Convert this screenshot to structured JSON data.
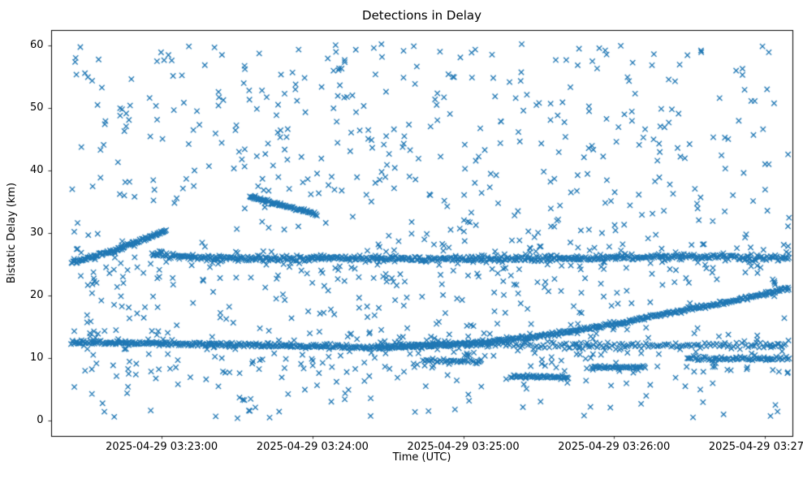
{
  "chart_data": {
    "type": "scatter",
    "title": "Detections in Delay",
    "xlabel": "Time (UTC)",
    "ylabel": "Bistatic Delay (km)",
    "marker": "x",
    "marker_color": "#1f77b4",
    "background_color": "#ffffff",
    "legend": "none",
    "grid": false,
    "x_domain_seconds": [
      0,
      295
    ],
    "x_ticks": [
      {
        "t": 44,
        "label": "2025-04-29 03:23:00"
      },
      {
        "t": 104,
        "label": "2025-04-29 03:24:00"
      },
      {
        "t": 164,
        "label": "2025-04-29 03:25:00"
      },
      {
        "t": 224,
        "label": "2025-04-29 03:26:00"
      },
      {
        "t": 284,
        "label": "2025-04-29 03:27:00"
      }
    ],
    "ylim": [
      -2.5,
      62.5
    ],
    "y_ticks": [
      0,
      10,
      20,
      30,
      40,
      50,
      60
    ],
    "tracks": [
      {
        "name": "ascending-track-left",
        "anchors": [
          [
            8,
            25.2
          ],
          [
            25,
            27.2
          ],
          [
            46,
            30.4
          ]
        ],
        "rate": 3.0,
        "jitter": 0.12
      },
      {
        "name": "level-band-26",
        "anchors": [
          [
            40,
            26.6
          ],
          [
            55,
            26.1
          ],
          [
            80,
            25.9
          ],
          [
            120,
            26.0
          ],
          [
            160,
            25.8
          ],
          [
            200,
            25.9
          ],
          [
            230,
            26.1
          ],
          [
            260,
            26.2
          ],
          [
            294,
            25.9
          ]
        ],
        "rate": 2.2,
        "jitter": 0.22
      },
      {
        "name": "level-band-12-left",
        "anchors": [
          [
            8,
            12.5
          ],
          [
            40,
            12.3
          ],
          [
            70,
            12.1
          ],
          [
            100,
            11.9
          ],
          [
            128,
            11.7
          ]
        ],
        "rate": 2.2,
        "jitter": 0.18
      },
      {
        "name": "ascending-track-right",
        "anchors": [
          [
            128,
            11.6
          ],
          [
            150,
            11.9
          ],
          [
            175,
            12.6
          ],
          [
            200,
            13.8
          ],
          [
            225,
            15.5
          ],
          [
            250,
            17.5
          ],
          [
            275,
            19.4
          ],
          [
            294,
            21.2
          ]
        ],
        "rate": 2.5,
        "jitter": 0.15
      },
      {
        "name": "descending-track-mid",
        "anchors": [
          [
            79,
            35.8
          ],
          [
            92,
            34.4
          ],
          [
            106,
            33.0
          ]
        ],
        "rate": 2.8,
        "jitter": 0.12
      },
      {
        "name": "level-band-12-right",
        "anchors": [
          [
            130,
            12.2
          ],
          [
            180,
            12.0
          ],
          [
            230,
            11.9
          ],
          [
            294,
            12.2
          ]
        ],
        "rate": 1.2,
        "jitter": 0.3
      },
      {
        "name": "level-cluster-7",
        "anchors": [
          [
            183,
            7.0
          ],
          [
            206,
            6.9
          ]
        ],
        "rate": 2.0,
        "jitter": 0.12
      },
      {
        "name": "level-cluster-8p5",
        "anchors": [
          [
            215,
            8.5
          ],
          [
            237,
            8.5
          ]
        ],
        "rate": 2.0,
        "jitter": 0.12
      },
      {
        "name": "level-cluster-10-right",
        "anchors": [
          [
            253,
            9.9
          ],
          [
            294,
            9.9
          ]
        ],
        "rate": 1.6,
        "jitter": 0.15
      },
      {
        "name": "level-cluster-9p5-mid",
        "anchors": [
          [
            148,
            9.6
          ],
          [
            172,
            9.4
          ]
        ],
        "rate": 1.5,
        "jitter": 0.15
      }
    ],
    "diffuse_bands": [
      {
        "name": "diffuse-band-22-28",
        "t_range": [
          8,
          294
        ],
        "y_range": [
          21.5,
          28.5
        ],
        "count": 130
      },
      {
        "name": "diffuse-band-8-14",
        "t_range": [
          8,
          294
        ],
        "y_range": [
          7.5,
          14.5
        ],
        "count": 110
      }
    ],
    "clutter": {
      "t_range": [
        8,
        294
      ],
      "y_range": [
        0.3,
        60.3
      ],
      "count": 760
    }
  }
}
